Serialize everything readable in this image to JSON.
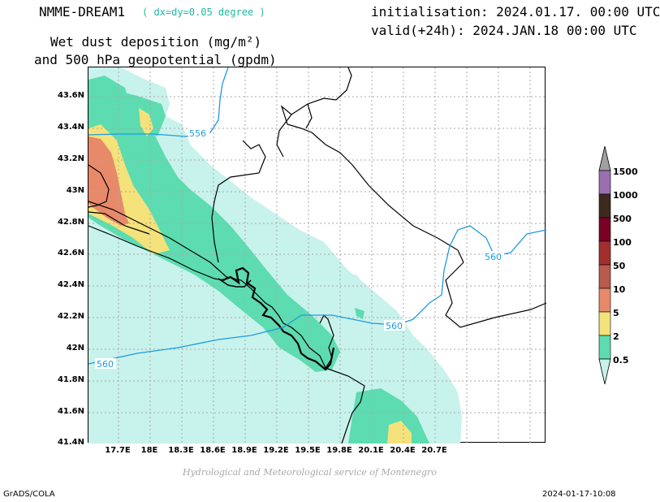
{
  "header": {
    "model": "NMME-DREAM1",
    "resolution": "( dx=dy=0.05 degree )",
    "initialisation": "initialisation: 2024.01.17. 00:00 UTC",
    "valid": "valid(+24h): 2024.JAN.18 00:00 UTC",
    "field_line1": "Wet dust deposition (mg/m²)",
    "field_line2": "and 500 hPa geopotential (gpdm)"
  },
  "axes": {
    "lat_labels": [
      "43.6N",
      "43.4N",
      "43.2N",
      "43N",
      "42.8N",
      "42.6N",
      "42.4N",
      "42.2N",
      "42N",
      "41.8N",
      "41.6N",
      "41.4N"
    ],
    "lon_labels": [
      "17.7E",
      "18E",
      "18.3E",
      "18.6E",
      "18.9E",
      "19.2E",
      "19.5E",
      "19.8E",
      "20.1E",
      "20.4E",
      "20.7E"
    ]
  },
  "contours": {
    "labels": [
      "556",
      "560",
      "560",
      "560"
    ],
    "color": "#1e9be0"
  },
  "legend": {
    "levels": [
      "1500",
      "1000",
      "500",
      "100",
      "50",
      "10",
      "5",
      "2",
      "0.5"
    ],
    "colors": {
      "c1500": "#9a6fb0",
      "c1000": "#3d2a1e",
      "c500": "#7a0025",
      "c100": "#a32f2c",
      "c50": "#b85a4d",
      "c10": "#e8896a",
      "c5": "#f5e27a",
      "c2": "#5cdcb0",
      "c05": "#c8f2ec"
    }
  },
  "footer": {
    "credit": "Hydrological and Meteorological service of Montenegro",
    "grads": "GrADS/COLA",
    "timestamp": "2024-01-17-10:08"
  }
}
